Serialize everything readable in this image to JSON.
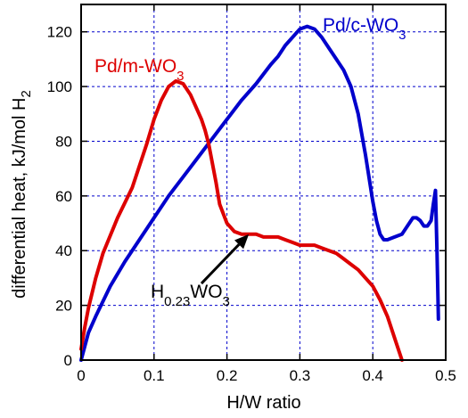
{
  "chart_data": {
    "type": "line",
    "xlabel": "H/W ratio",
    "ylabel": {
      "main": "differential heat, kJ/mol H",
      "sub": "2"
    },
    "xlim": [
      0,
      0.5
    ],
    "ylim": [
      0,
      130
    ],
    "xticks": [
      0,
      0.1,
      0.2,
      0.3,
      0.4,
      0.5
    ],
    "xtick_labels": [
      "0",
      "0.1",
      "0.2",
      "0.3",
      "0.4",
      "0.5"
    ],
    "yticks": [
      0,
      20,
      40,
      60,
      80,
      100,
      120
    ],
    "ytick_labels": [
      "0",
      "20",
      "40",
      "60",
      "80",
      "100",
      "120"
    ],
    "grid": true,
    "series": [
      {
        "label_main": "Pd/c-WO",
        "label_sub": "3",
        "color": "#0000cc",
        "x": [
          0,
          0.01,
          0.02,
          0.04,
          0.06,
          0.08,
          0.1,
          0.12,
          0.14,
          0.16,
          0.18,
          0.2,
          0.22,
          0.24,
          0.26,
          0.27,
          0.28,
          0.29,
          0.3,
          0.31,
          0.32,
          0.33,
          0.34,
          0.35,
          0.36,
          0.37,
          0.38,
          0.39,
          0.4,
          0.405,
          0.41,
          0.415,
          0.42,
          0.43,
          0.44,
          0.45,
          0.455,
          0.46,
          0.465,
          0.47,
          0.475,
          0.48,
          0.483,
          0.486,
          0.488,
          0.49
        ],
        "y": [
          0,
          10,
          16,
          27,
          36,
          44,
          52,
          60,
          67,
          74,
          81,
          88,
          95,
          101,
          108,
          111,
          115,
          118,
          121,
          122,
          121,
          118,
          114,
          110,
          106,
          100,
          90,
          75,
          58,
          51,
          46,
          44,
          44,
          45,
          46,
          50,
          52,
          52,
          51,
          49,
          49,
          51,
          57,
          62,
          40,
          15
        ]
      },
      {
        "label_main": "Pd/m-WO",
        "label_sub": "3",
        "color": "#dd0000",
        "x": [
          0,
          0.005,
          0.01,
          0.02,
          0.03,
          0.05,
          0.07,
          0.09,
          0.1,
          0.11,
          0.12,
          0.13,
          0.14,
          0.15,
          0.16,
          0.165,
          0.17,
          0.175,
          0.18,
          0.185,
          0.19,
          0.2,
          0.21,
          0.22,
          0.23,
          0.24,
          0.25,
          0.26,
          0.27,
          0.28,
          0.29,
          0.3,
          0.31,
          0.32,
          0.33,
          0.34,
          0.35,
          0.36,
          0.37,
          0.38,
          0.39,
          0.4,
          0.41,
          0.42,
          0.43,
          0.44
        ],
        "y": [
          4,
          12,
          19,
          30,
          39,
          52,
          63,
          79,
          88,
          95,
          100,
          102,
          101,
          97,
          91,
          88,
          84,
          79,
          72,
          65,
          57,
          50,
          47,
          46,
          46,
          46,
          45,
          45,
          45,
          44,
          43,
          42,
          42,
          42,
          41,
          40,
          39,
          37,
          35,
          33,
          30,
          27,
          22,
          16,
          8,
          0
        ]
      }
    ],
    "annotation": {
      "text_main_1": "H",
      "text_sub_1": "0.23",
      "text_main_2": "WO",
      "text_sub_2": "3",
      "arrow_to": [
        0.23,
        46
      ],
      "arrow_from": [
        0.165,
        28
      ]
    }
  }
}
